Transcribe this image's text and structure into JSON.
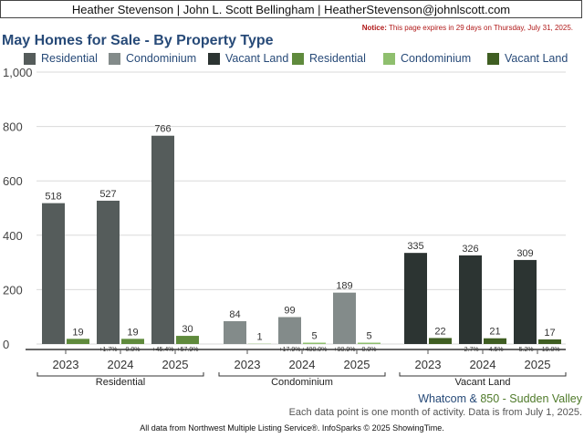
{
  "header": {
    "text": "Heather Stevenson | John L. Scott Bellingham | HeatherStevenson@johnlscott.com"
  },
  "notice": {
    "label": "Notice:",
    "text": "This page expires in 29 days on Thursday, July 31, 2025."
  },
  "region": {
    "city": "Whatcom",
    "amp": "&",
    "area": "850 - Sudden Valley"
  },
  "footnote": "Each data point is one month of activity. Data is from July 1, 2025.",
  "source": "All data from Northwest Multiple Listing Service®. InfoSparks © 2025 ShowingTime.",
  "colors": {
    "residential": "#555c5b",
    "condominium": "#838b8a",
    "vacant_land": "#2c3432",
    "residential_area": "#5f8a3c",
    "condominium_area": "#8fbf6e",
    "vacant_land_area": "#3f5e22"
  },
  "chart_data": {
    "type": "bar",
    "title": "May Homes for Sale - By Property Type",
    "groups": [
      "Residential",
      "Condominium",
      "Vacant Land"
    ],
    "categories": [
      "2023",
      "2024",
      "2025"
    ],
    "ylim": [
      0,
      1000
    ],
    "yticks": [
      0,
      200,
      400,
      600,
      800,
      1000
    ],
    "ytick_labels": [
      "0",
      "200",
      "400",
      "600",
      "800",
      "1,000"
    ],
    "grid": true,
    "legend": "top",
    "legend_entries": [
      "Residential",
      "Condominium",
      "Vacant Land",
      "Residential",
      "Condominium",
      "Vacant Land"
    ],
    "series": [
      {
        "group": "Residential",
        "kind": "region",
        "values": [
          518,
          527,
          766
        ],
        "changes": [
          "",
          "+1.7%",
          "+45.4%"
        ]
      },
      {
        "group": "Residential",
        "kind": "area",
        "values": [
          19,
          19,
          30
        ],
        "changes": [
          "",
          "0.0%",
          "+57.9%"
        ]
      },
      {
        "group": "Condominium",
        "kind": "region",
        "values": [
          84,
          99,
          189
        ],
        "changes": [
          "",
          "+17.9%",
          "+90.9%"
        ]
      },
      {
        "group": "Condominium",
        "kind": "area",
        "values": [
          1,
          5,
          5
        ],
        "changes": [
          "",
          "+400.0%",
          "0.0%"
        ]
      },
      {
        "group": "Vacant Land",
        "kind": "region",
        "values": [
          335,
          326,
          309
        ],
        "changes": [
          "",
          "-2.7%",
          "-5.2%"
        ]
      },
      {
        "group": "Vacant Land",
        "kind": "area",
        "values": [
          22,
          21,
          17
        ],
        "changes": [
          "",
          "-4.5%",
          "-19.0%"
        ]
      }
    ]
  }
}
